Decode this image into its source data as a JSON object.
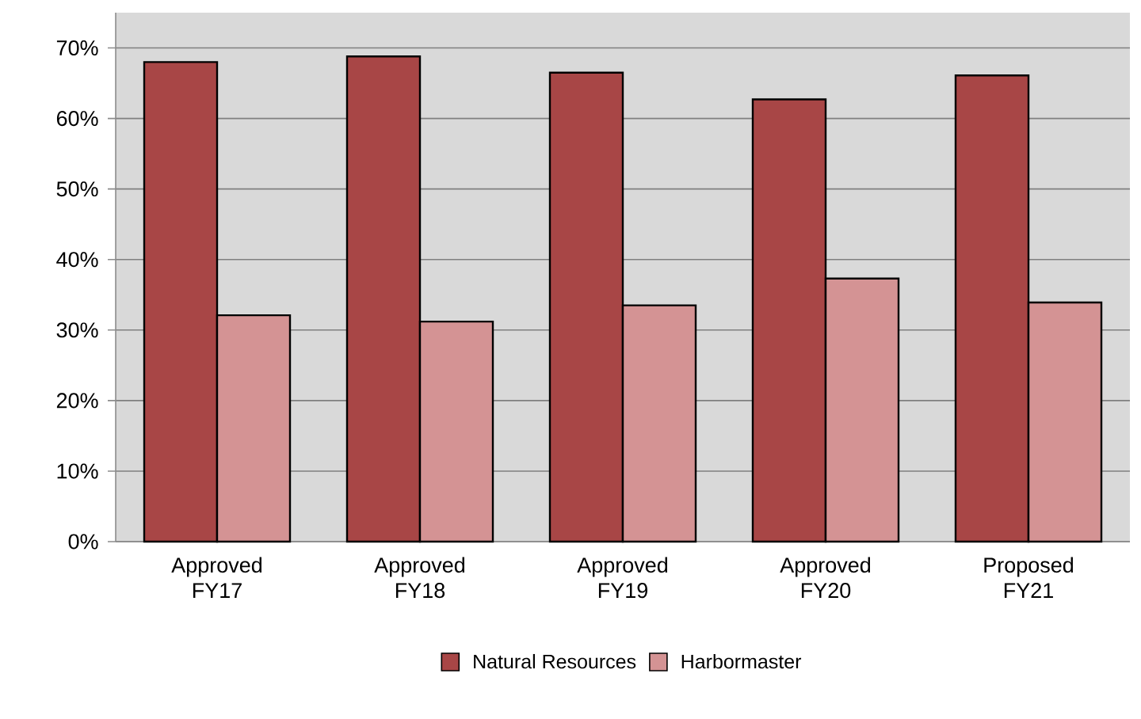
{
  "chart_data": {
    "type": "bar",
    "categories": [
      "Approved FY17",
      "Approved FY18",
      "Approved FY19",
      "Approved FY20",
      "Proposed FY21"
    ],
    "series": [
      {
        "name": "Natural Resources",
        "color": "#a84646",
        "values": [
          68.0,
          68.8,
          66.5,
          62.7,
          66.1
        ]
      },
      {
        "name": "Harbormaster",
        "color": "#d49394",
        "values": [
          32.1,
          31.2,
          33.5,
          37.3,
          33.9
        ]
      }
    ],
    "ylim": [
      0,
      75
    ],
    "yticks": [
      {
        "value": 0,
        "label": "0%"
      },
      {
        "value": 10,
        "label": "10%"
      },
      {
        "value": 20,
        "label": "20%"
      },
      {
        "value": 30,
        "label": "30%"
      },
      {
        "value": 40,
        "label": "40%"
      },
      {
        "value": 50,
        "label": "50%"
      },
      {
        "value": 60,
        "label": "60%"
      },
      {
        "value": 70,
        "label": "70%"
      }
    ],
    "grid": "y",
    "legend": "bottom"
  }
}
